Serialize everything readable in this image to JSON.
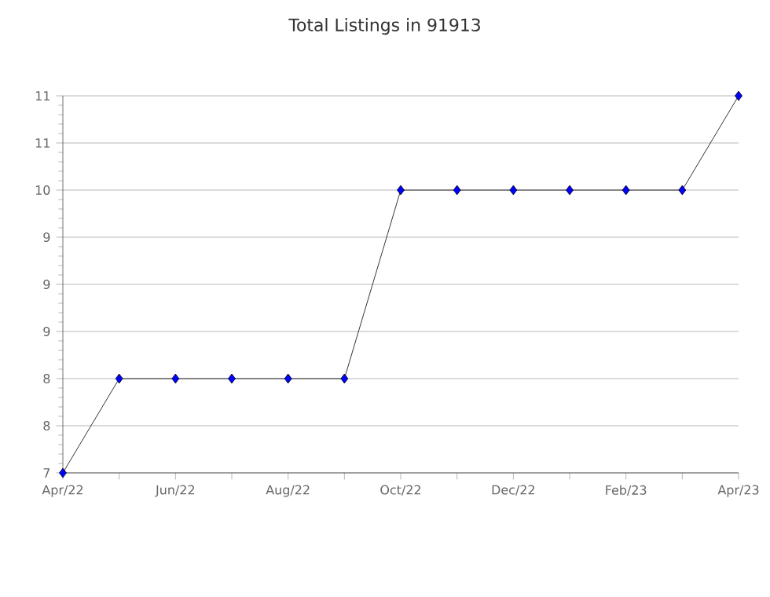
{
  "chart_data": {
    "type": "line",
    "title": "Total Listings in 91913",
    "x": [
      "2022-04",
      "2022-05",
      "2022-06",
      "2022-07",
      "2022-08",
      "2022-09",
      "2022-10",
      "2022-11",
      "2022-12",
      "2023-01",
      "2023-02",
      "2023-03",
      "2023-04"
    ],
    "series": [
      {
        "color": "#0000ff",
        "values": [
          7,
          8,
          8,
          8,
          8,
          8,
          10,
          10,
          10,
          10,
          10,
          10,
          11
        ]
      }
    ],
    "xlim": [
      "2022-04",
      "2023-04"
    ],
    "xticks": [
      {
        "value": "2022-04",
        "label": "Apr/22"
      },
      {
        "value": "2022-05",
        "label": null
      },
      {
        "value": "2022-06",
        "label": "Jun/22"
      },
      {
        "value": "2022-07",
        "label": null
      },
      {
        "value": "2022-08",
        "label": "Aug/22"
      },
      {
        "value": "2022-09",
        "label": null
      },
      {
        "value": "2022-10",
        "label": "Oct/22"
      },
      {
        "value": "2022-11",
        "label": null
      },
      {
        "value": "2022-12",
        "label": "Dec/22"
      },
      {
        "value": "2023-01",
        "label": null
      },
      {
        "value": "2023-02",
        "label": "Feb/23"
      },
      {
        "value": "2023-03",
        "label": null
      },
      {
        "value": "2023-04",
        "label": "Apr/23"
      }
    ],
    "ylim": [
      7,
      11
    ],
    "yticks": [
      7,
      {
        "value": 7.5,
        "label": "8"
      },
      8,
      {
        "value": 8.5,
        "label": "9"
      },
      9,
      {
        "value": 9.5,
        "label": "9"
      },
      10,
      {
        "value": 10.5,
        "label": "11"
      },
      11
    ],
    "grid": "y",
    "marker": "diamond",
    "line_style": "solid"
  }
}
